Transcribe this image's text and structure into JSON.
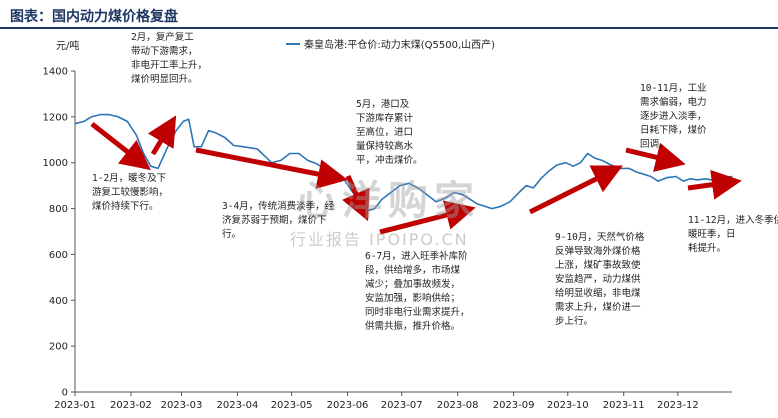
{
  "header": {
    "title": "图表：国内动力煤价格复盘"
  },
  "watermark": {
    "line1": "心洋购家",
    "line2": "行业报告 IPOIPO.CN"
  },
  "chart_data": {
    "type": "line",
    "ylabel": "元/吨",
    "ylim": [
      0,
      1400
    ],
    "yticks": [
      0,
      200,
      400,
      600,
      800,
      1000,
      1200,
      1400
    ],
    "xticks": [
      "2023-01",
      "2023-02",
      "2023-03",
      "2023-04",
      "2023-05",
      "2023-06",
      "2023-07",
      "2023-08",
      "2023-09",
      "2023-10",
      "2023-11",
      "2023-12"
    ],
    "legend_position": "top",
    "series": [
      {
        "name": "秦皇岛港:平仓价:动力末煤(Q5500,山西产)",
        "color": "#2e75b6",
        "x": [
          "2023-01-01",
          "2023-01-06",
          "2023-01-10",
          "2023-01-15",
          "2023-01-20",
          "2023-01-25",
          "2023-01-30",
          "2023-02-04",
          "2023-02-08",
          "2023-02-12",
          "2023-02-16",
          "2023-02-18",
          "2023-02-22",
          "2023-02-26",
          "2023-03-02",
          "2023-03-05",
          "2023-03-08",
          "2023-03-12",
          "2023-03-16",
          "2023-03-20",
          "2023-03-25",
          "2023-03-30",
          "2023-04-04",
          "2023-04-08",
          "2023-04-12",
          "2023-04-16",
          "2023-04-20",
          "2023-04-25",
          "2023-04-30",
          "2023-05-05",
          "2023-05-10",
          "2023-05-15",
          "2023-05-20",
          "2023-05-25",
          "2023-05-30",
          "2023-06-03",
          "2023-06-06",
          "2023-06-09",
          "2023-06-12",
          "2023-06-16",
          "2023-06-20",
          "2023-06-25",
          "2023-06-30",
          "2023-07-05",
          "2023-07-10",
          "2023-07-15",
          "2023-07-20",
          "2023-07-25",
          "2023-07-30",
          "2023-08-04",
          "2023-08-08",
          "2023-08-12",
          "2023-08-16",
          "2023-08-20",
          "2023-08-25",
          "2023-08-30",
          "2023-09-04",
          "2023-09-08",
          "2023-09-12",
          "2023-09-16",
          "2023-09-20",
          "2023-09-25",
          "2023-09-30",
          "2023-10-04",
          "2023-10-08",
          "2023-10-12",
          "2023-10-16",
          "2023-10-20",
          "2023-10-25",
          "2023-10-30",
          "2023-11-04",
          "2023-11-08",
          "2023-11-12",
          "2023-11-16",
          "2023-11-20",
          "2023-11-25",
          "2023-11-30",
          "2023-12-04",
          "2023-12-08",
          "2023-12-12",
          "2023-12-16",
          "2023-12-20",
          "2023-12-25",
          "2023-12-31"
        ],
        "values": [
          1170,
          1180,
          1200,
          1210,
          1210,
          1200,
          1180,
          1120,
          1040,
          985,
          975,
          1010,
          1080,
          1140,
          1180,
          1190,
          1070,
          1070,
          1140,
          1130,
          1110,
          1075,
          1070,
          1065,
          1060,
          1030,
          1000,
          1010,
          1040,
          1040,
          1010,
          995,
          970,
          945,
          930,
          880,
          850,
          810,
          790,
          800,
          840,
          870,
          900,
          910,
          890,
          860,
          830,
          845,
          870,
          860,
          840,
          820,
          810,
          800,
          810,
          830,
          870,
          900,
          890,
          930,
          960,
          990,
          1000,
          985,
          1000,
          1040,
          1020,
          1010,
          990,
          975,
          975,
          960,
          950,
          940,
          920,
          935,
          940,
          920,
          930,
          925,
          930,
          925,
          935,
          940
        ]
      }
    ],
    "annotations": [
      "2月，复产复工\n带动下游需求，\n非电开工率上升，\n煤价明显回升。",
      "1-2月，暖冬及下\n游复工较慢影响，\n煤价持续下行。",
      "3-4月，传统消费淡季，经\n济复苏弱于预期，煤价下\n行。",
      "5月，港口及\n下游库存累计\n至高位，进口\n量保持较高水\n平，冲击煤价。",
      "6-7月，进入旺季补库阶\n段，供给增多，市场煤\n减少；叠加事故频发，\n安监加强，影响供给；\n同时非电行业需求提升，\n供需共振，推升价格。",
      "9-10月，天然气价格\n反弹导致海外煤价格\n上涨，煤矿事故致使\n安监趋严，动力煤供\n给明显收缩，非电煤\n需求上升，煤价进一\n步上行。",
      "10-11月，工业\n需求偏弱，电力\n逐步进入淡季，\n日耗下降，煤价\n回调。",
      "11-12月，进入冬季供\n暖旺季，日\n耗提升。"
    ]
  }
}
